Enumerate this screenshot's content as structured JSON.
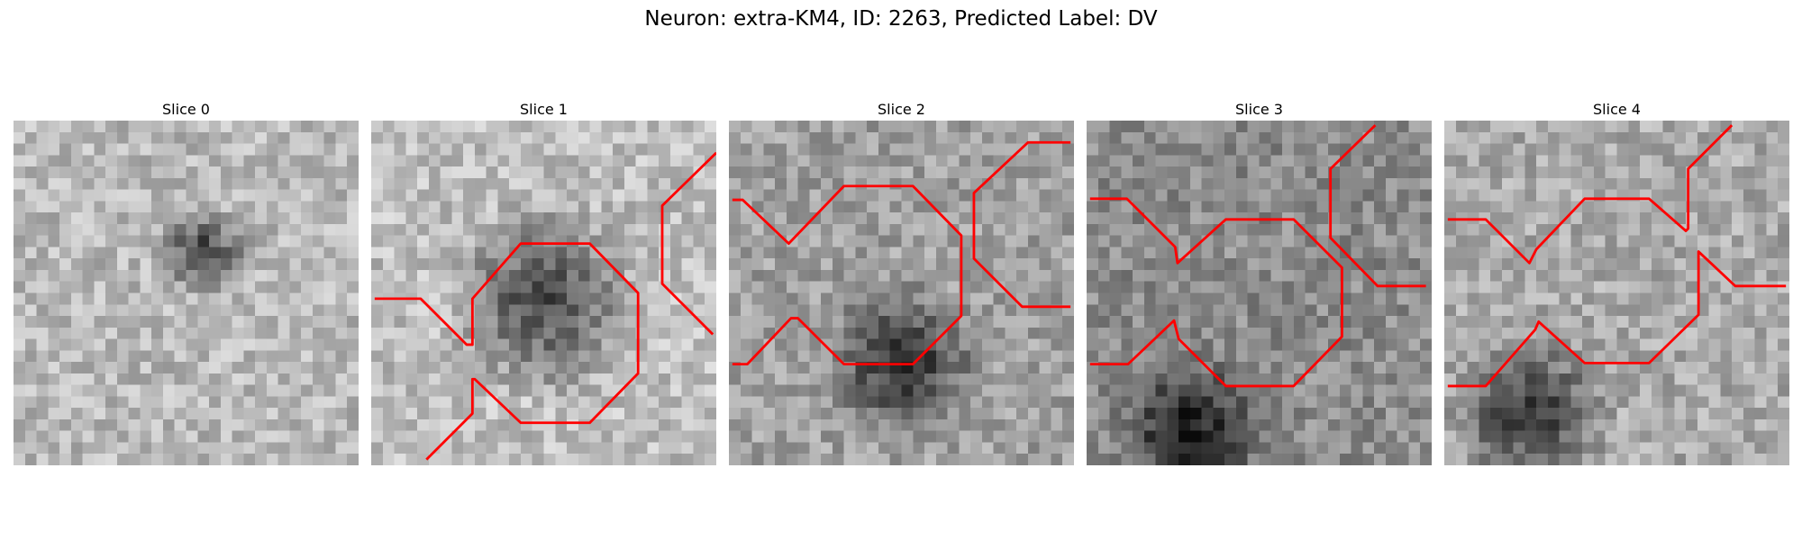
{
  "figure": {
    "suptitle": "Neuron: extra-KM4, ID: 2263, Predicted Label: DV",
    "outline_color": "#ff0000"
  },
  "panels": [
    {
      "title": "Slice 0",
      "base": 185,
      "dark_center": [
        0.55,
        0.38
      ],
      "dark_radius": 0.15,
      "outline": false
    },
    {
      "title": "Slice 1",
      "base": 190,
      "dark_center": [
        0.5,
        0.52
      ],
      "dark_radius": 0.3,
      "outline": true
    },
    {
      "title": "Slice 2",
      "base": 160,
      "dark_center": [
        0.5,
        0.7
      ],
      "dark_radius": 0.25,
      "outline": true
    },
    {
      "title": "Slice 3",
      "base": 140,
      "dark_center": [
        0.3,
        0.9
      ],
      "dark_radius": 0.25,
      "outline": true
    },
    {
      "title": "Slice 4",
      "base": 170,
      "dark_center": [
        0.25,
        0.85
      ],
      "dark_radius": 0.25,
      "outline": true
    }
  ]
}
